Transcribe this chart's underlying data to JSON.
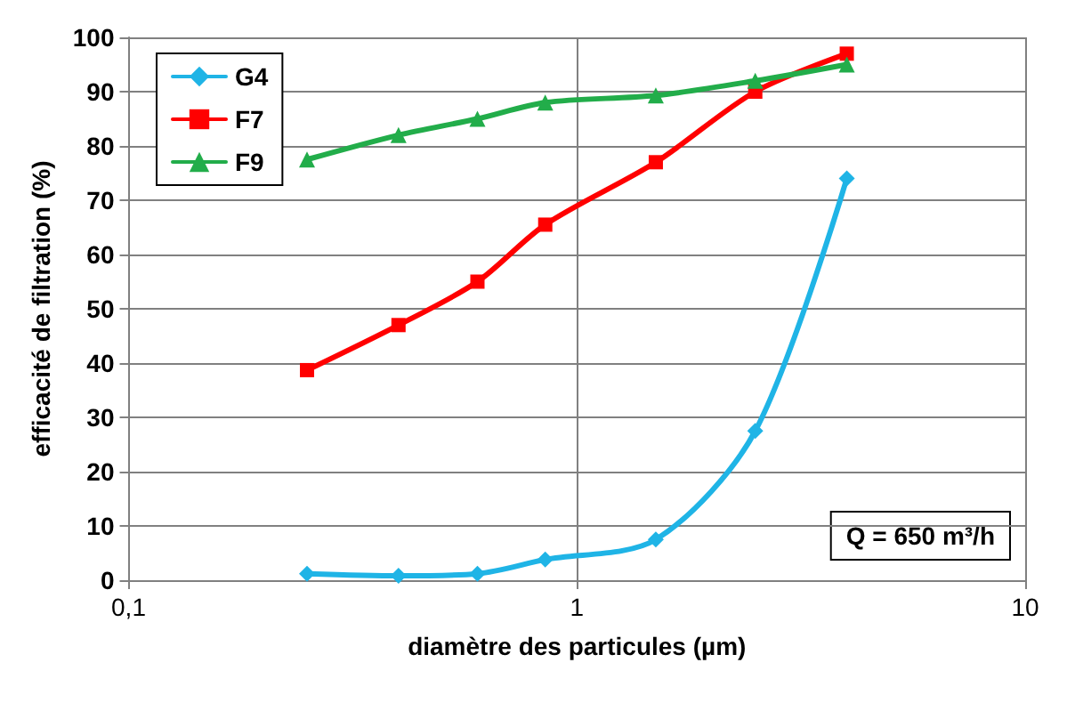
{
  "chart_data": {
    "type": "line",
    "xlabel": "diamètre des particules (µm)",
    "ylabel": "efficacité de filtration (%)",
    "x": [
      0.25,
      0.4,
      0.6,
      0.85,
      1.5,
      2.5,
      4
    ],
    "series": [
      {
        "name": "G4",
        "color": "#1fb4e6",
        "marker": "diamond",
        "values": [
          1.2,
          0.8,
          1.2,
          3.8,
          7.5,
          27.5,
          74
        ]
      },
      {
        "name": "F7",
        "color": "#ff0000",
        "marker": "square",
        "values": [
          38.7,
          47,
          55,
          65.5,
          77,
          90,
          97
        ]
      },
      {
        "name": "F9",
        "color": "#22ad4a",
        "marker": "triangle",
        "values": [
          77.5,
          82,
          85,
          88,
          89.3,
          92,
          95
        ]
      }
    ],
    "log": "x",
    "xlim": [
      0.1,
      10
    ],
    "xticks": [
      {
        "value": 0.1,
        "label": "0,1"
      },
      1,
      10
    ],
    "ylim": [
      0,
      100
    ],
    "yticks": [
      0,
      10,
      20,
      30,
      40,
      50,
      60,
      70,
      80,
      90,
      100
    ],
    "grid": true,
    "legend": "top left",
    "line_style": "solid",
    "annotations": [
      "Q = 650 m³/h"
    ]
  }
}
